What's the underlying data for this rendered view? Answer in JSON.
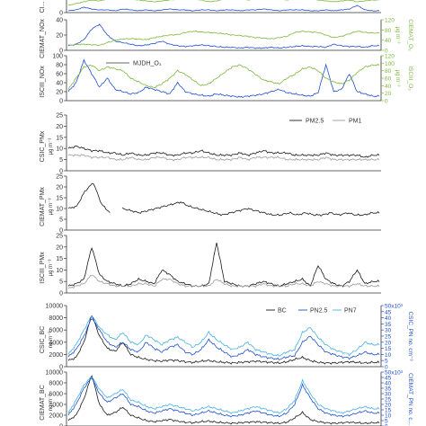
{
  "colors": {
    "green": "#7ab83a",
    "blue": "#1f4fd1",
    "lightblue": "#46b0e0",
    "black": "#1a1a1a",
    "grey": "#9a9a9a",
    "axis": "#333333"
  },
  "chart_data": [
    {
      "id": "p0",
      "type": "line",
      "ylabel": "CI...",
      "ylim": [
        0,
        20
      ],
      "yticks": [
        "0",
        "20"
      ],
      "series": [
        {
          "color": "blue",
          "values": [
            2,
            3,
            6,
            4,
            3,
            3,
            2,
            4,
            3,
            2,
            3,
            2,
            3,
            4,
            3,
            3,
            2,
            3,
            3,
            2,
            3,
            3,
            2,
            3,
            3,
            4,
            3,
            2,
            3,
            3,
            3,
            2,
            2,
            3,
            2,
            3,
            4,
            8,
            3,
            2
          ]
        },
        {
          "color": "green",
          "values": [
            8,
            10,
            12,
            14,
            13,
            15,
            16,
            18,
            15,
            14,
            13,
            12,
            13,
            14,
            15,
            16,
            15,
            14,
            12,
            13,
            15,
            16,
            15,
            14,
            15,
            17,
            16,
            15,
            14,
            15,
            16,
            15,
            14,
            13,
            12,
            13,
            14,
            12,
            13,
            14
          ]
        }
      ]
    },
    {
      "id": "p1",
      "type": "line",
      "ylabel": "CIEMAT_NOx",
      "ylim": [
        0,
        40
      ],
      "yticks": [
        "0",
        "20",
        "40"
      ],
      "right_label": "CIEMAT_O₃",
      "right_unit": "µg m⁻³",
      "right_ylim": [
        0,
        120
      ],
      "right_yticks": [
        "0",
        "40",
        "80",
        "120"
      ],
      "series": [
        {
          "color": "blue",
          "axis": "left",
          "values": [
            6,
            8,
            14,
            28,
            34,
            20,
            12,
            10,
            8,
            6,
            7,
            9,
            12,
            8,
            6,
            5,
            6,
            7,
            6,
            5,
            4,
            4,
            3,
            4,
            3,
            3,
            4,
            3,
            4,
            5,
            6,
            5,
            5,
            4,
            8,
            6,
            5,
            5,
            4,
            6
          ]
        },
        {
          "color": "green",
          "axis": "right",
          "values": [
            20,
            22,
            24,
            22,
            20,
            30,
            40,
            44,
            46,
            44,
            42,
            50,
            55,
            60,
            62,
            70,
            75,
            72,
            70,
            68,
            65,
            60,
            58,
            55,
            50,
            48,
            45,
            50,
            55,
            70,
            75,
            72,
            70,
            60,
            50,
            55,
            65,
            75,
            70,
            68
          ]
        }
      ]
    },
    {
      "id": "p2",
      "type": "line",
      "ylabel": "ISCIII_NOx",
      "ylim": [
        0,
        100
      ],
      "yticks": [
        "0",
        "20",
        "40",
        "60",
        "80",
        "100"
      ],
      "right_label": "ISCIII_O₃",
      "right_unit": "µg m⁻³",
      "right_ylim": [
        0,
        120
      ],
      "right_yticks": [
        "0",
        "20",
        "40",
        "60",
        "80",
        "100",
        "120"
      ],
      "legend": [
        "MJDH_O₃"
      ],
      "series": [
        {
          "color": "blue",
          "axis": "left",
          "values": [
            20,
            40,
            90,
            60,
            30,
            50,
            25,
            20,
            15,
            18,
            30,
            25,
            20,
            15,
            40,
            20,
            15,
            12,
            10,
            15,
            12,
            10,
            8,
            10,
            12,
            15,
            20,
            25,
            18,
            15,
            12,
            10,
            18,
            80,
            20,
            25,
            60,
            20,
            15,
            10
          ]
        },
        {
          "color": "green",
          "axis": "right",
          "values": [
            30,
            60,
            90,
            95,
            80,
            90,
            85,
            80,
            60,
            50,
            40,
            35,
            45,
            60,
            80,
            70,
            55,
            40,
            45,
            60,
            75,
            90,
            95,
            85,
            70,
            55,
            50,
            45,
            60,
            70,
            85,
            90,
            80,
            60,
            50,
            45,
            55,
            75,
            90,
            95
          ]
        }
      ]
    },
    {
      "id": "p3",
      "type": "line",
      "ylabel": "CSIC_PMx",
      "unit": "µg m⁻³",
      "ylim": [
        0,
        25
      ],
      "yticks": [
        "0",
        "5",
        "10",
        "15",
        "20",
        "25"
      ],
      "legend": [
        "PM2.5",
        "PM1"
      ],
      "series": [
        {
          "name": "PM2.5",
          "color": "black",
          "values": [
            10,
            11,
            10,
            9,
            9,
            8,
            8,
            7,
            8,
            7,
            7,
            8,
            8,
            7,
            7,
            8,
            8,
            9,
            8,
            7,
            7,
            7,
            8,
            7,
            8,
            9,
            8,
            8,
            8,
            7,
            7,
            7,
            7,
            8,
            7,
            7,
            7,
            7,
            6,
            7
          ]
        },
        {
          "name": "PM1",
          "color": "grey",
          "values": [
            7,
            7,
            7,
            6,
            6,
            6,
            5,
            5,
            6,
            5,
            5,
            6,
            6,
            5,
            5,
            6,
            6,
            6,
            6,
            5,
            5,
            5,
            6,
            5,
            6,
            6,
            6,
            6,
            5,
            5,
            5,
            5,
            5,
            6,
            5,
            5,
            5,
            5,
            5,
            5
          ]
        }
      ]
    },
    {
      "id": "p4",
      "type": "line",
      "ylabel": "CIEMAT_PMx",
      "unit": "µg m⁻³",
      "ylim": [
        0,
        25
      ],
      "yticks": [
        "0",
        "5",
        "10",
        "15",
        "20",
        "25"
      ],
      "series": [
        {
          "color": "black",
          "values": [
            10,
            11,
            18,
            22,
            12,
            8,
            null,
            null,
            null,
            10,
            9,
            8,
            9,
            10,
            11,
            12,
            13,
            11,
            10,
            9,
            8,
            7,
            8,
            9,
            10,
            9,
            8,
            7,
            7,
            8,
            7,
            8,
            7,
            7,
            8,
            7,
            8,
            7,
            7,
            8
          ]
        }
      ]
    },
    {
      "id": "p5",
      "type": "line",
      "ylabel": "ISCIII_PMx",
      "unit": "µg m⁻³",
      "ylim": [
        0,
        25
      ],
      "yticks": [
        "0",
        "5",
        "10",
        "15",
        "20",
        "25"
      ],
      "series": [
        {
          "color": "black",
          "values": [
            3,
            4,
            6,
            20,
            8,
            5,
            4,
            3,
            4,
            6,
            5,
            4,
            10,
            8,
            5,
            4,
            3,
            3,
            4,
            22,
            5,
            4,
            3,
            3,
            4,
            5,
            4,
            3,
            4,
            5,
            6,
            3,
            12,
            6,
            4,
            3,
            5,
            10,
            4,
            5
          ]
        },
        {
          "color": "grey",
          "values": [
            2,
            3,
            4,
            8,
            5,
            4,
            3,
            3,
            3,
            4,
            4,
            3,
            6,
            6,
            4,
            3,
            3,
            3,
            3,
            6,
            4,
            3,
            3,
            3,
            3,
            4,
            3,
            3,
            3,
            4,
            4,
            3,
            5,
            4,
            3,
            3,
            3,
            4,
            3,
            3
          ]
        }
      ]
    },
    {
      "id": "p6",
      "type": "line",
      "ylabel": "CSIC_BC",
      "unit": "ng m⁻³",
      "ylim": [
        0,
        10000
      ],
      "yticks": [
        "0",
        "2000",
        "4000",
        "6000",
        "8000",
        "10000"
      ],
      "right_label": "CSIC_PN no. cm⁻³",
      "right_ylim": [
        0,
        50000
      ],
      "right_yticks": [
        "0",
        "5",
        "10",
        "15",
        "20",
        "25",
        "30",
        "35",
        "40",
        "45",
        "50x10³"
      ],
      "legend": [
        "BC",
        "PN2.5",
        "PN7"
      ],
      "series": [
        {
          "name": "BC",
          "color": "black",
          "axis": "left",
          "values": [
            1000,
            1500,
            4000,
            8500,
            5000,
            3000,
            2500,
            4000,
            2000,
            1500,
            1200,
            1000,
            900,
            1100,
            1000,
            800,
            700,
            900,
            1000,
            800,
            700,
            600,
            700,
            800,
            900,
            800,
            700,
            600,
            800,
            1200,
            1500,
            1000,
            700,
            600,
            600,
            700,
            800,
            700,
            600,
            700
          ]
        },
        {
          "name": "PN2.5",
          "color": "blue",
          "axis": "right",
          "values": [
            8000,
            14000,
            25000,
            40000,
            30000,
            20000,
            16000,
            20000,
            14000,
            12000,
            20000,
            15000,
            12000,
            16000,
            18000,
            12000,
            10000,
            14000,
            22000,
            16000,
            12000,
            8000,
            10000,
            14000,
            10000,
            8000,
            7000,
            6000,
            8000,
            9000,
            20000,
            25000,
            18000,
            12000,
            10000,
            8000,
            7000,
            9000,
            12000,
            10000
          ]
        },
        {
          "name": "PN7",
          "color": "lightblue",
          "axis": "right",
          "values": [
            10000,
            18000,
            30000,
            42000,
            32000,
            26000,
            22000,
            28000,
            20000,
            18000,
            26000,
            22000,
            18000,
            22000,
            24000,
            20000,
            16000,
            20000,
            28000,
            22000,
            18000,
            14000,
            16000,
            20000,
            14000,
            12000,
            10000,
            9000,
            12000,
            14000,
            28000,
            32000,
            24000,
            18000,
            14000,
            12000,
            10000,
            14000,
            20000,
            18000
          ]
        }
      ]
    },
    {
      "id": "p7",
      "type": "line",
      "ylabel": "CIEMAT_BC",
      "unit": "ng m⁻³",
      "ylim": [
        0,
        10000
      ],
      "yticks": [
        "0",
        "2000",
        "4000",
        "6000",
        "8000",
        "10000"
      ],
      "right_label": "CIEMAT_PN no. c...",
      "right_ylim": [
        0,
        50000
      ],
      "right_yticks": [
        "0",
        "5",
        "10",
        "15",
        "20",
        "25",
        "30",
        "35",
        "40",
        "45",
        "50x10³"
      ],
      "series": [
        {
          "color": "black",
          "axis": "left",
          "values": [
            1000,
            2000,
            5000,
            9500,
            4000,
            2000,
            2500,
            3500,
            2000,
            1500,
            1000,
            800,
            1000,
            1200,
            900,
            700,
            600,
            800,
            900,
            700,
            600,
            500,
            600,
            700,
            800,
            700,
            600,
            500,
            700,
            1500,
            2500,
            1200,
            800,
            600,
            500,
            600,
            700,
            600,
            500,
            600
          ]
        },
        {
          "color": "blue",
          "axis": "right",
          "values": [
            10000,
            20000,
            35000,
            45000,
            30000,
            22000,
            26000,
            30000,
            20000,
            18000,
            14000,
            12000,
            14000,
            16000,
            14000,
            12000,
            10000,
            12000,
            14000,
            12000,
            10000,
            9000,
            10000,
            12000,
            14000,
            12000,
            10000,
            9000,
            12000,
            20000,
            38000,
            26000,
            16000,
            12000,
            10000,
            9000,
            10000,
            12000,
            14000,
            12000
          ]
        },
        {
          "color": "lightblue",
          "axis": "right",
          "values": [
            12000,
            24000,
            38000,
            46000,
            34000,
            26000,
            30000,
            34000,
            24000,
            22000,
            18000,
            16000,
            18000,
            20000,
            18000,
            16000,
            14000,
            16000,
            18000,
            16000,
            14000,
            12000,
            14000,
            16000,
            18000,
            16000,
            14000,
            12000,
            16000,
            24000,
            42000,
            30000,
            20000,
            16000,
            14000,
            12000,
            14000,
            16000,
            18000,
            16000
          ]
        }
      ]
    }
  ]
}
